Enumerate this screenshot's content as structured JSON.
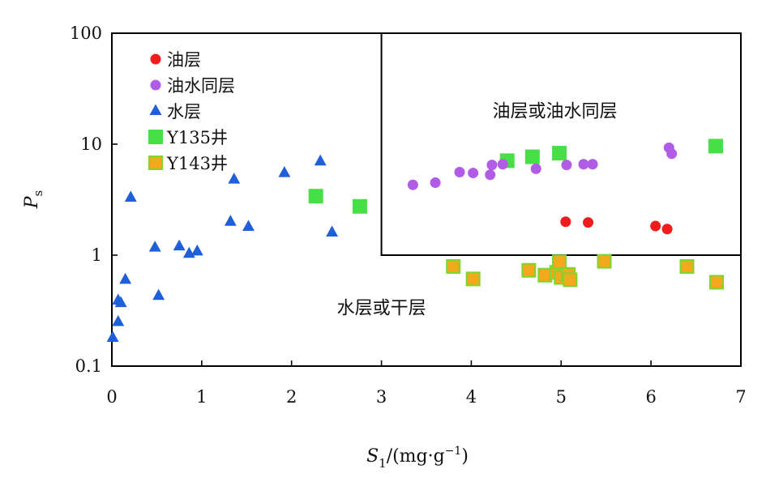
{
  "chart_data": {
    "type": "scatter",
    "x_scale": "linear",
    "y_scale": "log",
    "xlim": [
      0,
      7
    ],
    "ylim": [
      0.1,
      100
    ],
    "x_ticks": [
      "0",
      "1",
      "2",
      "3",
      "4",
      "5",
      "6",
      "7"
    ],
    "y_ticks": [
      "0.1",
      "1",
      "10",
      "100"
    ],
    "xlabel": {
      "symbol": "S",
      "subscript": "1",
      "unit": "/(mg·g",
      "exp": "−1",
      "close": ")"
    },
    "ylabel": {
      "symbol": "P",
      "subscript": "s"
    },
    "grid": false,
    "legend_position": "top-left",
    "regions": [
      {
        "label": "油层或油水同层",
        "x_range": [
          3,
          7
        ],
        "y_range": [
          1,
          100
        ]
      },
      {
        "label": "水层或干层",
        "x_range": [
          0,
          7
        ],
        "y_range": [
          0.1,
          1
        ]
      }
    ],
    "series": [
      {
        "name": "油层",
        "marker": "circle",
        "color": "#ee1c1c",
        "stroke": "#ee1c1c",
        "points": [
          [
            5.05,
            2.0
          ],
          [
            5.3,
            1.97
          ],
          [
            6.05,
            1.83
          ],
          [
            6.18,
            1.72
          ]
        ]
      },
      {
        "name": "油水同层",
        "marker": "circle",
        "color": "#b05ce6",
        "stroke": "#b05ce6",
        "points": [
          [
            3.35,
            4.3
          ],
          [
            3.6,
            4.5
          ],
          [
            3.87,
            5.6
          ],
          [
            4.02,
            5.5
          ],
          [
            4.21,
            5.3
          ],
          [
            4.23,
            6.5
          ],
          [
            4.35,
            6.6
          ],
          [
            4.72,
            6.0
          ],
          [
            5.06,
            6.5
          ],
          [
            5.25,
            6.6
          ],
          [
            5.35,
            6.6
          ],
          [
            6.2,
            9.3
          ],
          [
            6.23,
            8.2
          ]
        ]
      },
      {
        "name": "水层",
        "marker": "triangle",
        "color": "#1f5fd9",
        "stroke": "#1f5fd9",
        "points": [
          [
            0.01,
            0.18
          ],
          [
            0.07,
            0.25
          ],
          [
            0.07,
            0.39
          ],
          [
            0.1,
            0.37
          ],
          [
            0.15,
            0.6
          ],
          [
            0.21,
            3.3
          ],
          [
            0.48,
            1.17
          ],
          [
            0.52,
            0.43
          ],
          [
            0.75,
            1.2
          ],
          [
            0.86,
            1.03
          ],
          [
            0.95,
            1.08
          ],
          [
            1.32,
            2.0
          ],
          [
            1.36,
            4.8
          ],
          [
            1.52,
            1.8
          ],
          [
            1.92,
            5.5
          ],
          [
            2.32,
            7.0
          ],
          [
            2.45,
            1.6
          ]
        ]
      },
      {
        "name": "Y135井",
        "marker": "square",
        "color": "#46e046",
        "stroke": "#46e046",
        "points": [
          [
            2.27,
            3.4
          ],
          [
            2.76,
            2.75
          ],
          [
            4.4,
            7.1
          ],
          [
            4.68,
            7.7
          ],
          [
            4.98,
            8.3
          ],
          [
            6.72,
            9.6
          ]
        ]
      },
      {
        "name": "Y143井",
        "marker": "square",
        "color": "#f2a91c",
        "stroke": "#7cd62e",
        "points": [
          [
            3.8,
            0.79
          ],
          [
            4.02,
            0.61
          ],
          [
            4.64,
            0.73
          ],
          [
            4.82,
            0.66
          ],
          [
            4.95,
            0.7
          ],
          [
            4.98,
            0.87
          ],
          [
            5.0,
            0.63
          ],
          [
            5.08,
            0.67
          ],
          [
            5.1,
            0.6
          ],
          [
            5.48,
            0.88
          ],
          [
            6.4,
            0.79
          ],
          [
            6.73,
            0.57
          ]
        ]
      }
    ]
  }
}
